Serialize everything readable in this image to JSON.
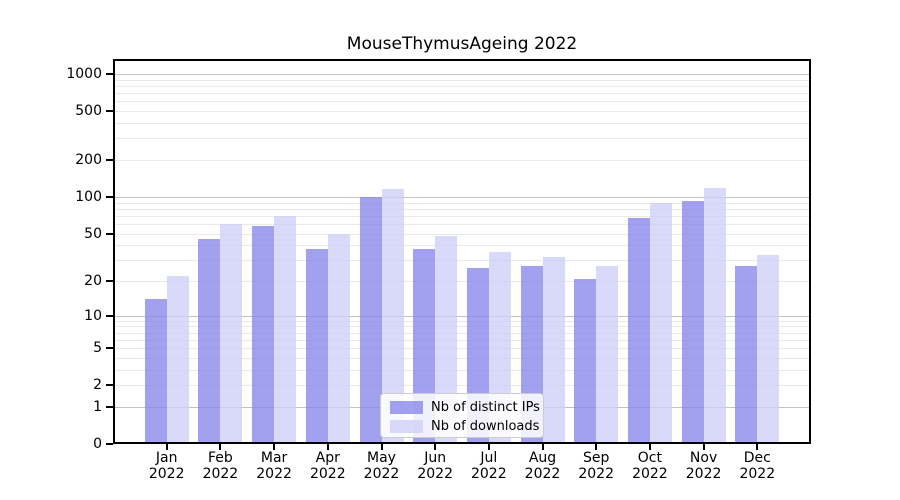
{
  "chart_data": {
    "type": "bar",
    "title": "MouseThymusAgeing 2022",
    "categories": [
      "Jan 2022",
      "Feb 2022",
      "Mar 2022",
      "Apr 2022",
      "May 2022",
      "Jun 2022",
      "Jul 2022",
      "Aug 2022",
      "Sep 2022",
      "Oct 2022",
      "Nov 2022",
      "Dec 2022"
    ],
    "series": [
      {
        "name": "Nb of distinct IPs",
        "color": "rgba(134,134,236,0.78)",
        "values": [
          14,
          45,
          58,
          37,
          99,
          37,
          26,
          27,
          21,
          67,
          92,
          27
        ]
      },
      {
        "name": "Nb of downloads",
        "color": "rgba(206,206,247,0.78)",
        "values": [
          22,
          60,
          70,
          50,
          116,
          48,
          35,
          32,
          27,
          90,
          118,
          33
        ]
      }
    ],
    "xlabel": "",
    "ylabel": "",
    "yscale": "log1p",
    "yticks": [
      0,
      1,
      2,
      5,
      10,
      20,
      50,
      100,
      200,
      500,
      1000
    ],
    "ylim": [
      0,
      1325
    ],
    "grid": true,
    "legend_position": "lower center"
  }
}
